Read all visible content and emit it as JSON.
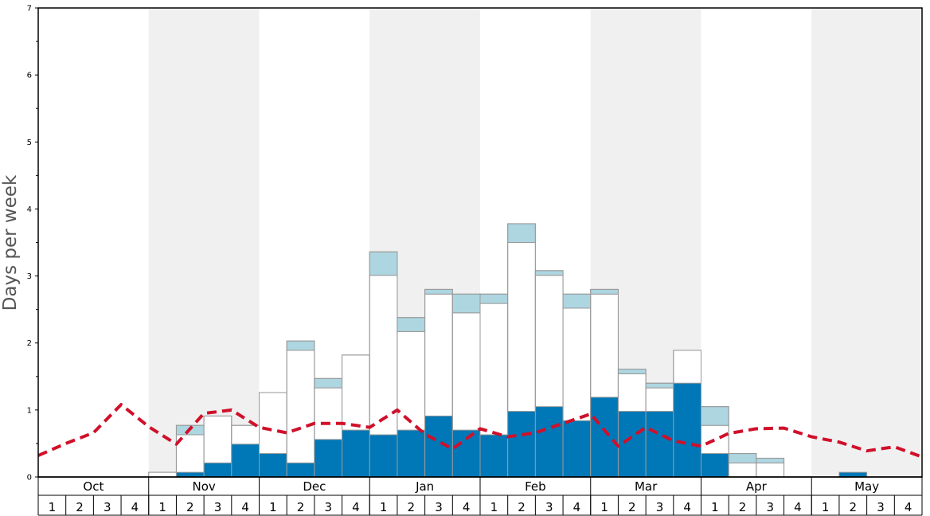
{
  "chart_data": {
    "type": "bar",
    "title": "",
    "ylabel": "Days per week",
    "xlabel": "",
    "ylim": [
      0,
      7
    ],
    "yticks": [
      0,
      1,
      2,
      3,
      4,
      5,
      6,
      7
    ],
    "grid": false,
    "months": [
      "Oct",
      "Nov",
      "Dec",
      "Jan",
      "Feb",
      "Mar",
      "Apr",
      "May"
    ],
    "weeks_per_month": 4,
    "week_labels": [
      "1",
      "2",
      "3",
      "4"
    ],
    "shaded_months": [
      "Nov",
      "Jan",
      "Mar",
      "May"
    ],
    "series": [
      {
        "kind": "stacked-bar",
        "color": "#0077b6",
        "values": [
          0,
          0,
          0,
          0,
          0,
          0.07,
          0.21,
          0.49,
          0.35,
          0.21,
          0.56,
          0.7,
          0.63,
          0.7,
          0.91,
          0.7,
          0.63,
          0.98,
          1.05,
          0.84,
          1.19,
          0.98,
          0.98,
          1.4,
          0.35,
          0,
          0,
          0,
          0,
          0.07,
          0,
          0
        ]
      },
      {
        "kind": "stacked-bar",
        "color": "#ffffff",
        "values": [
          0,
          0,
          0,
          0,
          0.07,
          0.56,
          0.7,
          0.28,
          0.91,
          1.68,
          0.77,
          1.12,
          2.38,
          1.47,
          1.82,
          1.75,
          1.96,
          2.52,
          1.96,
          1.68,
          1.54,
          0.56,
          0.35,
          0.49,
          0.42,
          0.21,
          0.21,
          0,
          0,
          0,
          0,
          0
        ]
      },
      {
        "kind": "stacked-bar",
        "color": "#add6e1",
        "values": [
          0,
          0,
          0,
          0,
          0,
          0.14,
          0,
          0,
          0,
          0.14,
          0.14,
          0,
          0.35,
          0.21,
          0.07,
          0.28,
          0.14,
          0.28,
          0.07,
          0.21,
          0.07,
          0.07,
          0.07,
          0,
          0.28,
          0.14,
          0.07,
          0,
          0,
          0,
          0,
          0
        ]
      },
      {
        "kind": "line",
        "color": "#d0102a",
        "dashed": true,
        "values": [
          0.32,
          0.5,
          0.66,
          1.08,
          0.75,
          0.49,
          0.95,
          1.0,
          0.74,
          0.66,
          0.8,
          0.8,
          0.74,
          1.0,
          0.64,
          0.42,
          0.72,
          0.6,
          0.66,
          0.8,
          0.94,
          0.46,
          0.74,
          0.54,
          0.46,
          0.65,
          0.72,
          0.73,
          0.6,
          0.52,
          0.39,
          0.45,
          0.3
        ]
      }
    ]
  }
}
